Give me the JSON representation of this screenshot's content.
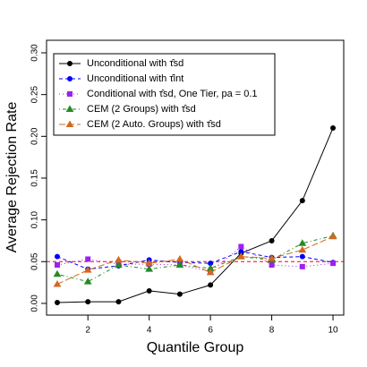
{
  "chart_data": {
    "type": "line",
    "x_label": "Quantile Group",
    "y_label": "Average Rejection Rate",
    "x": [
      1,
      2,
      3,
      4,
      5,
      6,
      7,
      8,
      9,
      10
    ],
    "xlim": [
      0.65,
      10.35
    ],
    "xticks": [
      2,
      4,
      6,
      8,
      10
    ],
    "ylim": [
      -0.014,
      0.315
    ],
    "yticks": [
      {
        "value": 0,
        "label": "0.00"
      },
      {
        "value": 0.05,
        "label": "0.05"
      },
      {
        "value": 0.1,
        "label": "0.10"
      },
      {
        "value": 0.15,
        "label": "0.15"
      },
      {
        "value": 0.2,
        "label": "0.20"
      },
      {
        "value": 0.25,
        "label": "0.25"
      },
      {
        "value": 0.3,
        "label": "0.30"
      }
    ],
    "reference_line": {
      "value": 0.05,
      "color": "#ff0000"
    },
    "legend": "top-left",
    "series": [
      {
        "name": "Unconditional with τ̂sd",
        "color": "#000000",
        "marker": "circle",
        "dash": "none",
        "values": [
          0.001,
          0.002,
          0.002,
          0.015,
          0.011,
          0.022,
          0.06,
          0.075,
          0.123,
          0.21
        ]
      },
      {
        "name": "Unconditional with τ̂int",
        "color": "#0000ff",
        "marker": "circle",
        "dash": "4 3",
        "values": [
          0.056,
          0.041,
          0.045,
          0.052,
          0.049,
          0.048,
          0.062,
          0.055,
          0.056,
          0.049
        ]
      },
      {
        "name": "Conditional with τ̂sd, One Tier, pa = 0.1",
        "color": "#a020f0",
        "marker": "square",
        "dash": "1 3",
        "values": [
          0.046,
          0.053,
          0.047,
          0.047,
          0.046,
          0.038,
          0.068,
          0.046,
          0.044,
          0.048
        ]
      },
      {
        "name": "CEM (2 Groups) with τ̂sd",
        "color": "#228b22",
        "marker": "triangle",
        "dash": "1 3 4 3",
        "values": [
          0.035,
          0.026,
          0.046,
          0.041,
          0.046,
          0.042,
          0.056,
          0.052,
          0.072,
          0.081
        ]
      },
      {
        "name": "CEM (2 Auto. Groups) with τ̂sd",
        "color": "#d2691e",
        "marker": "triangle",
        "dash": "7 3",
        "values": [
          0.023,
          0.04,
          0.052,
          0.048,
          0.053,
          0.037,
          0.056,
          0.054,
          0.064,
          0.08
        ]
      }
    ]
  }
}
